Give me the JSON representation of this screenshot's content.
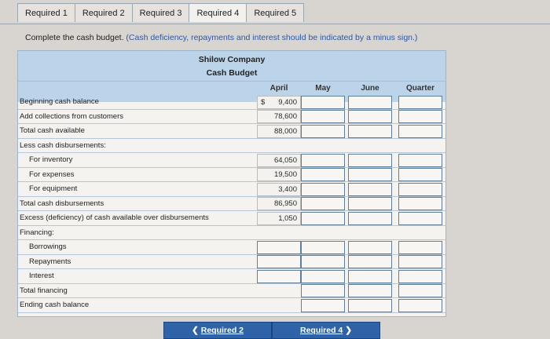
{
  "tabs": [
    "Required 1",
    "Required 2",
    "Required 3",
    "Required 4",
    "Required 5"
  ],
  "instruction": {
    "main": "Complete the cash budget.",
    "note": "(Cash deficiency, repayments and interest should be indicated by a minus sign.)"
  },
  "table": {
    "company": "Shilow Company",
    "title": "Cash Budget",
    "columns": [
      "April",
      "May",
      "June",
      "Quarter"
    ],
    "currency_symbol": "$",
    "rows": [
      {
        "label": "Beginning cash balance",
        "april": "9,400"
      },
      {
        "label": "Add collections from customers",
        "april": "78,600"
      },
      {
        "label": "Total cash available",
        "april": "88,000"
      },
      {
        "label": "Less cash disbursements:",
        "april": ""
      },
      {
        "label": "For inventory",
        "april": "64,050"
      },
      {
        "label": "For expenses",
        "april": "19,500"
      },
      {
        "label": "For equipment",
        "april": "3,400"
      },
      {
        "label": "Total cash disbursements",
        "april": "86,950"
      },
      {
        "label": "Excess (deficiency) of cash available over disbursements",
        "april": "1,050"
      },
      {
        "label": "Financing:",
        "april": ""
      },
      {
        "label": "Borrowings",
        "april": ""
      },
      {
        "label": "Repayments",
        "april": ""
      },
      {
        "label": "Interest",
        "april": ""
      },
      {
        "label": "Total financing",
        "april": ""
      },
      {
        "label": "Ending cash balance",
        "april": ""
      }
    ]
  },
  "nav": {
    "prev_label": "Required 2",
    "next_label": "Required 4",
    "prev_icon": "chevron-left-icon",
    "next_icon": "chevron-right-icon"
  }
}
